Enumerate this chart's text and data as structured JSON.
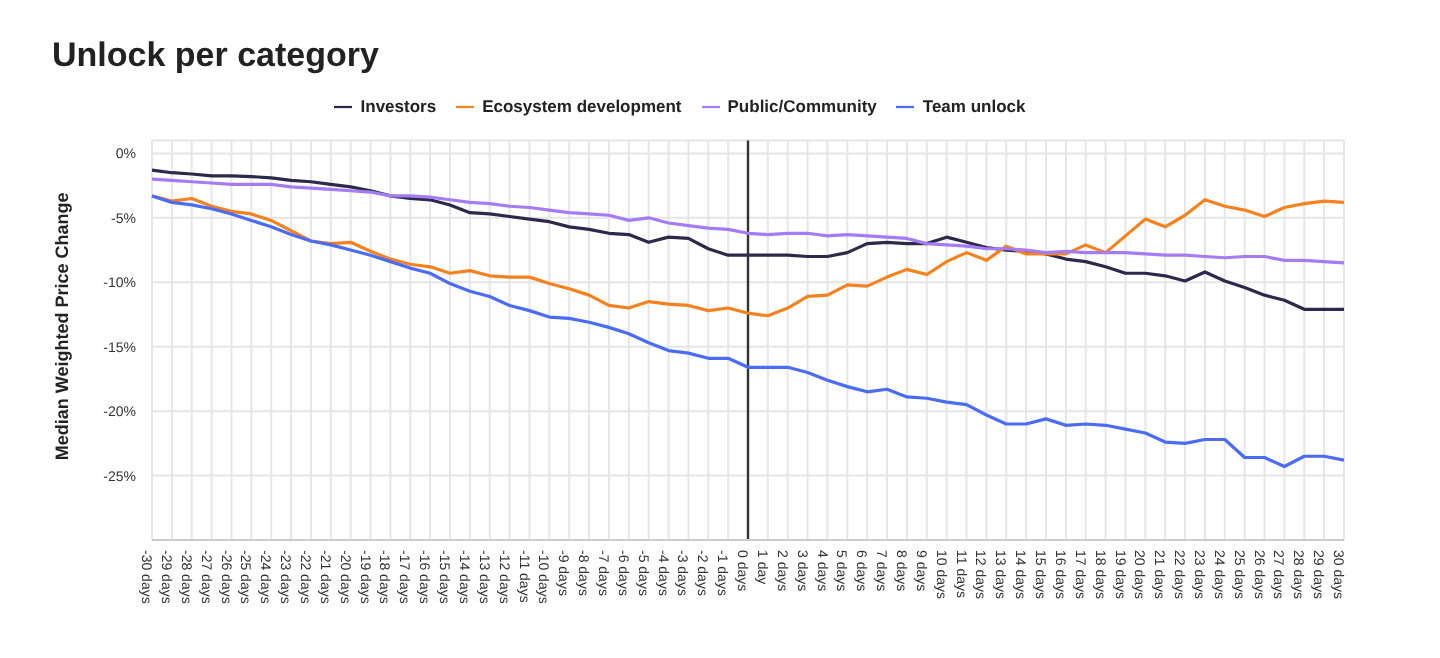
{
  "chart_data": {
    "type": "line",
    "title": "Unlock per category",
    "ylabel": "Median Weighted Price Change",
    "categories": [
      "-30 days",
      "-29 days",
      "-28 days",
      "-27 days",
      "-26 days",
      "-25 days",
      "-24 days",
      "-23 days",
      "-22 days",
      "-21 days",
      "-20 days",
      "-19 days",
      "-18 days",
      "-17 days",
      "-16 days",
      "-15 days",
      "-14 days",
      "-13 days",
      "-12 days",
      "-11 days",
      "-10 days",
      "-9 days",
      "-8 days",
      "-7 days",
      "-6 days",
      "-5 days",
      "-4 days",
      "-3 days",
      "-2 days",
      "-1 days",
      "0 days",
      "1 day",
      "2 days",
      "3 days",
      "4 days",
      "5 days",
      "6 days",
      "7 days",
      "8 days",
      "9 days",
      "10 days",
      "11 days",
      "12 days",
      "13 days",
      "14 days",
      "15 days",
      "16 days",
      "17 days",
      "18 days",
      "19 days",
      "20 days",
      "21 days",
      "22 days",
      "23 days",
      "24 days",
      "25 days",
      "26 days",
      "27 days",
      "28 days",
      "29 days",
      "30 days"
    ],
    "series": [
      {
        "name": "Investors",
        "color": "#2b2a4a",
        "values": [
          -1.3,
          -1.5,
          -1.6,
          -1.75,
          -1.75,
          -1.8,
          -1.9,
          -2.1,
          -2.2,
          -2.4,
          -2.6,
          -2.9,
          -3.3,
          -3.5,
          -3.6,
          -4.0,
          -4.6,
          -4.7,
          -4.9,
          -5.1,
          -5.3,
          -5.7,
          -5.9,
          -6.2,
          -6.3,
          -6.9,
          -6.5,
          -6.6,
          -7.4,
          -7.9,
          -7.9,
          -7.9,
          -7.9,
          -8.0,
          -8.0,
          -7.7,
          -7.0,
          -6.9,
          -7.0,
          -7.0,
          -6.5,
          -6.9,
          -7.3,
          -7.5,
          -7.6,
          -7.8,
          -8.2,
          -8.4,
          -8.8,
          -9.3,
          -9.3,
          -9.5,
          -9.9,
          -9.2,
          -9.9,
          -10.4,
          -11.0,
          -11.4,
          -12.1,
          -12.1,
          -12.1
        ]
      },
      {
        "name": "Ecosystem development",
        "color": "#f5821f",
        "values": [
          -3.3,
          -3.7,
          -3.5,
          -4.1,
          -4.5,
          -4.7,
          -5.2,
          -6.0,
          -6.8,
          -7.0,
          -6.9,
          -7.6,
          -8.2,
          -8.6,
          -8.8,
          -9.3,
          -9.1,
          -9.5,
          -9.6,
          -9.6,
          -10.1,
          -10.5,
          -11.0,
          -11.8,
          -12.0,
          -11.5,
          -11.7,
          -11.8,
          -12.2,
          -12.0,
          -12.4,
          -12.6,
          -12.0,
          -11.1,
          -11.0,
          -10.2,
          -10.3,
          -9.6,
          -9.0,
          -9.4,
          -8.4,
          -7.7,
          -8.3,
          -7.2,
          -7.8,
          -7.8,
          -7.8,
          -7.1,
          -7.7,
          -6.4,
          -5.1,
          -5.7,
          -4.8,
          -3.6,
          -4.1,
          -4.4,
          -4.9,
          -4.2,
          -3.9,
          -3.7,
          -3.8
        ]
      },
      {
        "name": "Public/Community",
        "color": "#a47cf5",
        "values": [
          -2.0,
          -2.1,
          -2.2,
          -2.3,
          -2.4,
          -2.4,
          -2.4,
          -2.6,
          -2.7,
          -2.8,
          -2.9,
          -3.0,
          -3.3,
          -3.3,
          -3.4,
          -3.6,
          -3.8,
          -3.9,
          -4.1,
          -4.2,
          -4.4,
          -4.6,
          -4.7,
          -4.8,
          -5.2,
          -5.0,
          -5.4,
          -5.6,
          -5.8,
          -5.9,
          -6.2,
          -6.3,
          -6.2,
          -6.2,
          -6.4,
          -6.3,
          -6.4,
          -6.5,
          -6.6,
          -7.0,
          -7.1,
          -7.2,
          -7.4,
          -7.4,
          -7.5,
          -7.7,
          -7.6,
          -7.7,
          -7.7,
          -7.7,
          -7.8,
          -7.9,
          -7.9,
          -8.0,
          -8.1,
          -8.0,
          -8.0,
          -8.3,
          -8.3,
          -8.4,
          -8.5
        ]
      },
      {
        "name": "Team unlock",
        "color": "#4a6cf7",
        "values": [
          -3.3,
          -3.8,
          -4.0,
          -4.3,
          -4.7,
          -5.2,
          -5.7,
          -6.3,
          -6.8,
          -7.1,
          -7.5,
          -7.9,
          -8.4,
          -8.9,
          -9.3,
          -10.1,
          -10.7,
          -11.1,
          -11.8,
          -12.2,
          -12.7,
          -12.8,
          -13.1,
          -13.5,
          -14.0,
          -14.7,
          -15.3,
          -15.5,
          -15.9,
          -15.9,
          -16.6,
          -16.6,
          -16.6,
          -17.0,
          -17.6,
          -18.1,
          -18.5,
          -18.3,
          -18.9,
          -19.0,
          -19.3,
          -19.5,
          -20.3,
          -21.0,
          -21.0,
          -20.6,
          -21.1,
          -21.0,
          -21.1,
          -21.4,
          -21.7,
          -22.4,
          -22.5,
          -22.2,
          -22.2,
          -23.6,
          -23.6,
          -24.3,
          -23.5,
          -23.5,
          -23.8
        ]
      }
    ],
    "ylim": [
      -30,
      1
    ],
    "yticks": [
      {
        "value": 0,
        "label": "0%"
      },
      {
        "value": -5,
        "label": "-5%"
      },
      {
        "value": -10,
        "label": "-10%"
      },
      {
        "value": -15,
        "label": "-15%"
      },
      {
        "value": -20,
        "label": "-20%"
      },
      {
        "value": -25,
        "label": "-25%"
      }
    ],
    "ref_lines": [
      {
        "axis": "x",
        "value": "0 days",
        "color": "#333333"
      }
    ],
    "grid": true,
    "legend": "top",
    "marker": "none",
    "line_style": "solid"
  }
}
